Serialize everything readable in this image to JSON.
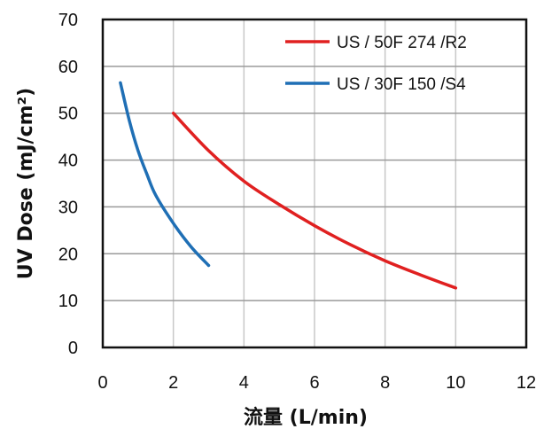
{
  "chart_data": {
    "type": "line",
    "title": "",
    "xlabel": "流量 (L/min)",
    "ylabel": "UV Dose (mJ/cm²)",
    "xlim": [
      0,
      12
    ],
    "ylim": [
      0,
      70
    ],
    "xticks": [
      "0",
      "2",
      "4",
      "6",
      "8",
      "10",
      "12"
    ],
    "yticks": [
      "0",
      "10",
      "20",
      "30",
      "40",
      "50",
      "60",
      "70"
    ],
    "grid": true,
    "legend_position": "top-right",
    "series": [
      {
        "name": "US / 50F 274 /R2",
        "color": "#e02020",
        "x": [
          2,
          3,
          4,
          5,
          6,
          7,
          8,
          9,
          10
        ],
        "y": [
          50,
          42,
          35.5,
          30.5,
          26,
          22,
          18.5,
          15.5,
          12.7
        ]
      },
      {
        "name": "US / 30F 150 /S4",
        "color": "#1f6fb5",
        "x": [
          0.5,
          0.75,
          1,
          1.25,
          1.5,
          2,
          2.5,
          3
        ],
        "y": [
          56.5,
          48.5,
          42,
          37,
          32.5,
          26.5,
          21.5,
          17.5
        ]
      }
    ]
  }
}
